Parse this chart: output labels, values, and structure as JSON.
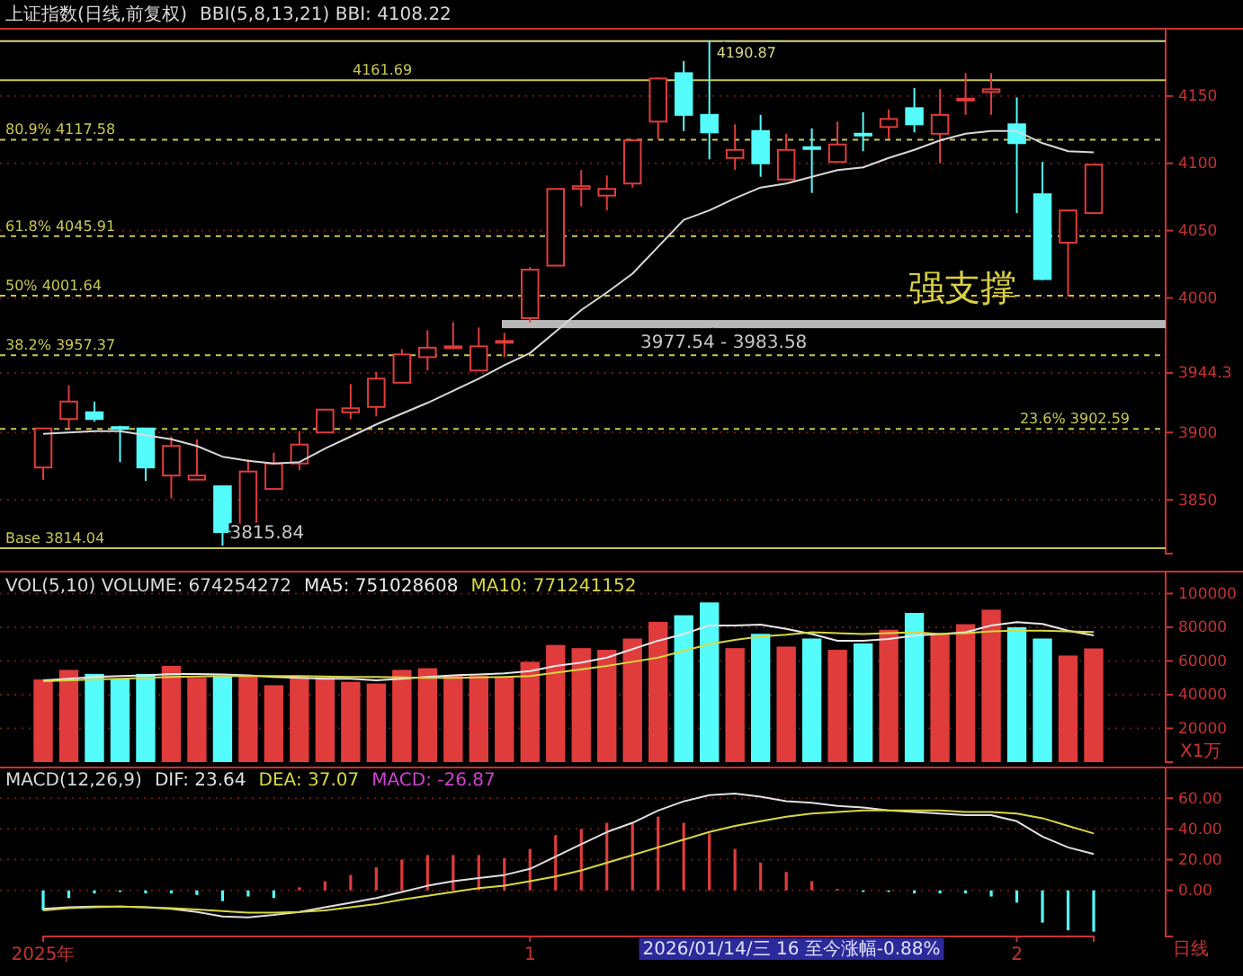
{
  "chart_data": [
    {
      "type": "candlestick",
      "title": "上证指数(日线,前复权)",
      "legend": "top left",
      "tick_labels": "y",
      "grid": "y",
      "categories": [
        null,
        null,
        null,
        null,
        null,
        null,
        null,
        null,
        null,
        null,
        null,
        null,
        null,
        null,
        null,
        null,
        null,
        null,
        null,
        null,
        null,
        null,
        null,
        null,
        null,
        null,
        null,
        null,
        null,
        null,
        null,
        null,
        null,
        null,
        null,
        null,
        null,
        null,
        null,
        null,
        null,
        null
      ],
      "ohlc": [
        [
          3874,
          3903,
          3865,
          3903
        ],
        [
          3910,
          3935,
          3903,
          3923
        ],
        [
          3915,
          3923,
          3908,
          3910
        ],
        [
          3904,
          3905,
          3878,
          3903
        ],
        [
          3903,
          3903,
          3864,
          3874
        ],
        [
          3868,
          3897,
          3851,
          3890
        ],
        [
          3865,
          3895,
          3865,
          3868
        ],
        [
          3860,
          3860,
          3815.84,
          3826
        ],
        [
          3824,
          3880,
          3824,
          3871
        ],
        [
          3858,
          3885,
          3858,
          3877
        ],
        [
          3877,
          3901,
          3872,
          3891
        ],
        [
          3900,
          3917,
          3900,
          3917
        ],
        [
          3915,
          3936,
          3910,
          3918
        ],
        [
          3919,
          3945,
          3912,
          3940
        ],
        [
          3937,
          3962,
          3937,
          3958
        ],
        [
          3956,
          3976,
          3946,
          3963
        ],
        [
          3963,
          3982,
          3962,
          3964
        ],
        [
          3946,
          3978,
          3946,
          3964
        ],
        [
          3967,
          3974,
          3956,
          3968
        ],
        [
          3985,
          4023,
          3982,
          4021
        ],
        [
          4024,
          4081,
          4024,
          4081
        ],
        [
          4081,
          4095,
          4068,
          4083
        ],
        [
          4076,
          4091,
          4065,
          4081
        ],
        [
          4085,
          4118,
          4082,
          4117
        ],
        [
          4131,
          4164,
          4118,
          4163
        ],
        [
          4167,
          4176,
          4124,
          4136
        ],
        [
          4136,
          4190.87,
          4103,
          4123
        ],
        [
          4104,
          4129,
          4095,
          4110
        ],
        [
          4124,
          4136,
          4090,
          4100
        ],
        [
          4088,
          4122,
          4088,
          4110
        ],
        [
          4112,
          4126,
          4078,
          4111
        ],
        [
          4101,
          4131,
          4101,
          4114
        ],
        [
          4122,
          4138,
          4109,
          4121
        ],
        [
          4127,
          4140,
          4118,
          4133
        ],
        [
          4141,
          4156,
          4123,
          4129
        ],
        [
          4122,
          4155,
          4100,
          4136
        ],
        [
          4147,
          4167,
          4136,
          4148
        ],
        [
          4153,
          4167,
          4136,
          4155
        ],
        [
          4129,
          4149,
          4063,
          4115
        ],
        [
          4077,
          4101,
          4013,
          4014
        ],
        [
          4041,
          4065,
          4001,
          4065
        ],
        [
          4063,
          4099,
          4063,
          4099
        ]
      ],
      "colors": [
        "#e03c3c",
        "#e03c3c",
        "#54fcfc",
        "#54fcfc",
        "#54fcfc",
        "#e03c3c",
        "#e03c3c",
        "#54fcfc",
        "#e03c3c",
        "#e03c3c",
        "#e03c3c",
        "#e03c3c",
        "#e03c3c",
        "#e03c3c",
        "#e03c3c",
        "#e03c3c",
        "#e03c3c",
        "#e03c3c",
        "#e03c3c",
        "#e03c3c",
        "#e03c3c",
        "#e03c3c",
        "#e03c3c",
        "#e03c3c",
        "#e03c3c",
        "#54fcfc",
        "#54fcfc",
        "#e03c3c",
        "#54fcfc",
        "#e03c3c",
        "#54fcfc",
        "#e03c3c",
        "#54fcfc",
        "#e03c3c",
        "#54fcfc",
        "#e03c3c",
        "#e03c3c",
        "#e03c3c",
        "#54fcfc",
        "#54fcfc",
        "#e03c3c",
        "#e03c3c"
      ],
      "series": [
        {
          "type": "line",
          "name": "BBI(5,8,13,21) BBI: 4108.22",
          "color": "#d8d8d8",
          "values": [
            3899,
            3900,
            3901,
            3901,
            3898,
            3895,
            3890,
            3882,
            3879,
            3877,
            3878,
            3888,
            3897,
            3906,
            3914,
            3922,
            3931,
            3940,
            3950,
            3959,
            3975,
            3991,
            4004,
            4018,
            4038,
            4058,
            4065,
            4074,
            4082,
            4085,
            4090,
            4095,
            4097,
            4104,
            4110,
            4117,
            4122,
            4124,
            4124,
            4115,
            4109,
            4108.22
          ]
        }
      ],
      "ylim": [
        3810,
        4200
      ],
      "yticks": [
        3850,
        3900,
        {
          "value": 3944.3,
          "label": "3944.3"
        },
        4000,
        4050,
        4100,
        4150
      ],
      "ref_lines": [
        {
          "axis": "y",
          "value": 4190.87,
          "label": "4190.87",
          "color": "#d8d890",
          "line_style": "solid"
        },
        {
          "axis": "y",
          "value": 4161.69,
          "label": "4161.69",
          "color": "#c8c850",
          "line_style": "solid"
        },
        {
          "axis": "y",
          "value": 4117.58,
          "label": "80.9% 4117.58",
          "color": "#c8c850",
          "line_style": "dashed"
        },
        {
          "axis": "y",
          "value": 4045.91,
          "label": "61.8% 4045.91",
          "color": "#c8c850",
          "line_style": "dashed"
        },
        {
          "axis": "y",
          "value": 4001.64,
          "label": "50% 4001.64",
          "color": "#c8c850",
          "line_style": "dashed"
        },
        {
          "axis": "y",
          "value": 3957.37,
          "label": "38.2% 3957.37",
          "color": "#c8c850",
          "line_style": "dashed"
        },
        {
          "axis": "y",
          "value": 3902.59,
          "label": "23.6% 3902.59",
          "color": "#c8c850",
          "line_style": "dashed"
        },
        {
          "axis": "y",
          "value": 3814.04,
          "label": "Base 3814.04",
          "color": "#c8c850",
          "line_style": "solid"
        }
      ],
      "bands": [
        {
          "axis": "y",
          "from": 3977.54,
          "to": 3983.58,
          "label": "3977.54 - 3983.58",
          "color": "#b8b8b8"
        }
      ],
      "annotations": [
        "强支撑",
        {
          "text": "3815.84",
          "y": 3815.84
        }
      ]
    },
    {
      "type": "bar",
      "title": "VOL(5,10) VOLUME: 674254272",
      "ylabel": "X1万",
      "legend": "top left",
      "tick_labels": "y",
      "grid": "y",
      "categories": [
        null,
        null,
        null,
        null,
        null,
        null,
        null,
        null,
        null,
        null,
        null,
        null,
        null,
        null,
        null,
        null,
        null,
        null,
        null,
        null,
        null,
        null,
        null,
        null,
        null,
        null,
        null,
        null,
        null,
        null,
        null,
        null,
        null,
        null,
        null,
        null,
        null,
        null,
        null,
        null,
        null,
        null
      ],
      "series": [
        {
          "type": "bar",
          "colors": [
            "#e03c3c",
            "#e03c3c",
            "#54fcfc",
            "#54fcfc",
            "#54fcfc",
            "#e03c3c",
            "#e03c3c",
            "#54fcfc",
            "#e03c3c",
            "#e03c3c",
            "#e03c3c",
            "#e03c3c",
            "#e03c3c",
            "#e03c3c",
            "#e03c3c",
            "#e03c3c",
            "#e03c3c",
            "#e03c3c",
            "#e03c3c",
            "#e03c3c",
            "#e03c3c",
            "#e03c3c",
            "#e03c3c",
            "#e03c3c",
            "#e03c3c",
            "#54fcfc",
            "#54fcfc",
            "#e03c3c",
            "#54fcfc",
            "#e03c3c",
            "#54fcfc",
            "#e03c3c",
            "#54fcfc",
            "#e03c3c",
            "#54fcfc",
            "#e03c3c",
            "#e03c3c",
            "#e03c3c",
            "#54fcfc",
            "#54fcfc",
            "#e03c3c",
            "#e03c3c"
          ],
          "values": [
            49000,
            54700,
            52300,
            49500,
            52300,
            57100,
            50000,
            51300,
            51300,
            45600,
            50400,
            50400,
            47600,
            46600,
            54700,
            55700,
            51300,
            51300,
            50400,
            59500,
            69500,
            67600,
            66600,
            73300,
            83200,
            87100,
            94700,
            67600,
            76100,
            68500,
            73300,
            66600,
            70400,
            78500,
            88500,
            76100,
            81800,
            90400,
            80000,
            73300,
            63200,
            67425
          ]
        },
        {
          "type": "line",
          "name": "MA5: 751028608",
          "color": "#e8e8e8",
          "values": [
            48500,
            49500,
            50500,
            51000,
            51500,
            52300,
            52200,
            52000,
            51500,
            50500,
            50000,
            49500,
            49500,
            48500,
            49500,
            50500,
            51500,
            52000,
            52700,
            54000,
            57000,
            59000,
            62000,
            67000,
            72000,
            76000,
            81000,
            81000,
            81500,
            79000,
            76000,
            72000,
            72000,
            73000,
            75000,
            76000,
            77000,
            81000,
            83000,
            82000,
            78000,
            75103
          ]
        },
        {
          "type": "line",
          "name": "MA10: 771241152",
          "color": "#d8d840",
          "values": [
            48000,
            48500,
            49000,
            49500,
            50000,
            50500,
            50800,
            51000,
            51000,
            51000,
            51000,
            50800,
            50500,
            50500,
            50200,
            50000,
            50000,
            50200,
            50500,
            51000,
            53000,
            55000,
            57000,
            59500,
            62000,
            66000,
            70000,
            72500,
            74500,
            75500,
            77000,
            76500,
            76000,
            76500,
            77000,
            76000,
            76500,
            77500,
            78000,
            78000,
            77500,
            77124
          ]
        }
      ],
      "ylim": [
        0,
        113000
      ],
      "yticks": [
        20000,
        40000,
        60000,
        80000,
        100000
      ]
    },
    {
      "type": "line",
      "title": "MACD(12,26,9)",
      "subtitle": "MACD: -26.87",
      "legend": "top left",
      "grid": "y",
      "categories": [
        "2025年",
        null,
        null,
        null,
        null,
        null,
        null,
        null,
        null,
        null,
        null,
        null,
        null,
        null,
        null,
        null,
        null,
        null,
        null,
        "1",
        null,
        null,
        null,
        null,
        null,
        null,
        null,
        null,
        null,
        null,
        null,
        null,
        null,
        null,
        null,
        null,
        null,
        null,
        "2",
        null,
        null,
        null
      ],
      "series": [
        {
          "type": "bar",
          "colors": [
            "#54fcfc",
            "#54fcfc",
            "#54fcfc",
            "#54fcfc",
            "#54fcfc",
            "#54fcfc",
            "#54fcfc",
            "#54fcfc",
            "#54fcfc",
            "#54fcfc",
            "#e03c3c",
            "#e03c3c",
            "#e03c3c",
            "#e03c3c",
            "#e03c3c",
            "#e03c3c",
            "#e03c3c",
            "#e03c3c",
            "#e03c3c",
            "#e03c3c",
            "#e03c3c",
            "#e03c3c",
            "#e03c3c",
            "#e03c3c",
            "#e03c3c",
            "#e03c3c",
            "#e03c3c",
            "#e03c3c",
            "#e03c3c",
            "#e03c3c",
            "#e03c3c",
            "#e03c3c",
            "#54fcfc",
            "#54fcfc",
            "#54fcfc",
            "#54fcfc",
            "#54fcfc",
            "#54fcfc",
            "#54fcfc",
            "#54fcfc",
            "#54fcfc",
            "#54fcfc"
          ],
          "values": [
            -13,
            -5,
            -2,
            -1,
            -2,
            -2,
            -3,
            -7,
            -4,
            -5,
            2,
            6,
            10,
            15,
            20,
            23,
            23,
            23,
            21,
            27,
            36,
            40,
            44,
            44,
            48,
            44,
            37,
            27,
            18,
            12,
            6,
            1,
            -1,
            -1,
            -2,
            -2,
            -2,
            -4,
            -8,
            -21,
            -26,
            -26.87
          ]
        },
        {
          "type": "line",
          "name": "DIF: 23.64",
          "color": "#e0e0e0",
          "values": [
            -12,
            -11,
            -10.5,
            -10.5,
            -11,
            -12,
            -14,
            -17,
            -17.5,
            -16,
            -14,
            -11,
            -8,
            -5,
            -1,
            3,
            6,
            8,
            10,
            14,
            22,
            30,
            38,
            44,
            52,
            58,
            62,
            63,
            61,
            58,
            57,
            55,
            54,
            52,
            51,
            50,
            49,
            49,
            45,
            35,
            28,
            23.64
          ]
        },
        {
          "type": "line",
          "name": "DEA: 37.07",
          "color": "#d8d840",
          "values": [
            -13,
            -11.5,
            -11,
            -10.5,
            -11,
            -11.5,
            -12.5,
            -13.5,
            -14.5,
            -14.5,
            -14,
            -13,
            -11,
            -9,
            -6,
            -3.5,
            -1,
            1.5,
            3,
            6,
            9,
            13,
            18,
            23,
            28,
            33,
            38,
            42,
            45,
            48,
            50,
            51,
            52,
            52,
            52,
            52,
            51,
            51,
            50,
            47,
            42,
            37.07
          ]
        }
      ],
      "ylim": [
        -30,
        80
      ],
      "yticks": [
        {
          "value": 0,
          "label": "0.00"
        },
        {
          "value": 20,
          "label": "20.00"
        },
        {
          "value": 40,
          "label": "40.00"
        },
        {
          "value": 60,
          "label": "60.00"
        }
      ],
      "annotations": [
        "2026/01/14/三 16 至今涨幅-0.88%",
        "日线"
      ]
    }
  ]
}
